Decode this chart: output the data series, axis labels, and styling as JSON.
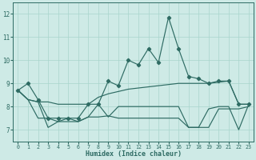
{
  "xlabel": "Humidex (Indice chaleur)",
  "x": [
    0,
    1,
    2,
    3,
    4,
    5,
    6,
    7,
    8,
    9,
    10,
    11,
    12,
    13,
    14,
    15,
    16,
    17,
    18,
    19,
    20,
    21,
    22,
    23
  ],
  "line_main": [
    8.7,
    9.0,
    8.3,
    7.5,
    7.5,
    7.5,
    7.5,
    8.1,
    8.1,
    9.1,
    8.9,
    10.0,
    9.8,
    10.5,
    9.9,
    11.85,
    10.5,
    9.3,
    9.2,
    9.0,
    9.1,
    9.1,
    8.1,
    8.1
  ],
  "line_upper": [
    8.7,
    8.3,
    8.2,
    8.2,
    8.1,
    8.1,
    8.1,
    8.1,
    8.4,
    8.55,
    8.65,
    8.75,
    8.8,
    8.85,
    8.9,
    8.95,
    9.0,
    9.0,
    9.0,
    9.0,
    9.05,
    9.1,
    8.1,
    8.1
  ],
  "line_lower": [
    8.7,
    8.3,
    8.2,
    7.1,
    7.35,
    7.35,
    7.35,
    7.55,
    7.55,
    7.6,
    7.5,
    7.5,
    7.5,
    7.5,
    7.5,
    7.5,
    7.5,
    7.1,
    7.1,
    7.1,
    7.9,
    7.9,
    7.9,
    8.0
  ],
  "line_zigzag": [
    8.7,
    8.3,
    7.5,
    7.5,
    7.35,
    7.5,
    7.35,
    7.55,
    8.1,
    7.55,
    8.0,
    8.0,
    8.0,
    8.0,
    8.0,
    8.0,
    8.0,
    7.1,
    7.1,
    7.9,
    8.0,
    8.0,
    7.0,
    8.1
  ],
  "ylim": [
    6.5,
    12.5
  ],
  "xlim": [
    -0.5,
    23.5
  ],
  "yticks": [
    7,
    8,
    9,
    10,
    11,
    12
  ],
  "xticks": [
    0,
    1,
    2,
    3,
    4,
    5,
    6,
    7,
    8,
    9,
    10,
    11,
    12,
    13,
    14,
    15,
    16,
    17,
    18,
    19,
    20,
    21,
    22,
    23
  ],
  "bg_color": "#ceeae6",
  "line_color": "#2e6b63",
  "grid_color": "#a8d5cc",
  "tick_color": "#2e6b63"
}
